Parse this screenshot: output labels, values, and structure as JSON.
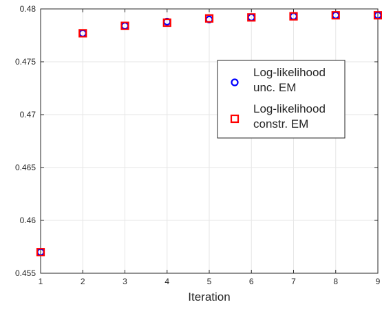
{
  "chart_data": {
    "type": "scatter",
    "title": "",
    "xlabel": "Iteration",
    "ylabel": "",
    "xlim": [
      1,
      9
    ],
    "ylim": [
      0.455,
      0.48
    ],
    "x_ticks": [
      1,
      2,
      3,
      4,
      5,
      6,
      7,
      8,
      9
    ],
    "y_ticks": [
      0.455,
      0.46,
      0.465,
      0.47,
      0.475,
      0.48
    ],
    "grid": true,
    "legend_position": "top-right",
    "series": [
      {
        "name_lines": [
          "Log-likelihood",
          "unc. EM"
        ],
        "marker": "circle",
        "color": "#0000ff",
        "x": [
          1,
          2,
          3,
          4,
          5,
          6,
          7,
          8,
          9
        ],
        "y": [
          0.457,
          0.4777,
          0.4784,
          0.4788,
          0.479,
          0.4792,
          0.4793,
          0.4794,
          0.4794
        ]
      },
      {
        "name_lines": [
          "Log-likelihood",
          "constr. EM"
        ],
        "marker": "square",
        "color": "#ff0000",
        "x": [
          1,
          2,
          3,
          4,
          5,
          6,
          7,
          8,
          9
        ],
        "y": [
          0.457,
          0.4777,
          0.4784,
          0.4787,
          0.4791,
          0.4792,
          0.4793,
          0.4794,
          0.4794
        ]
      }
    ]
  }
}
